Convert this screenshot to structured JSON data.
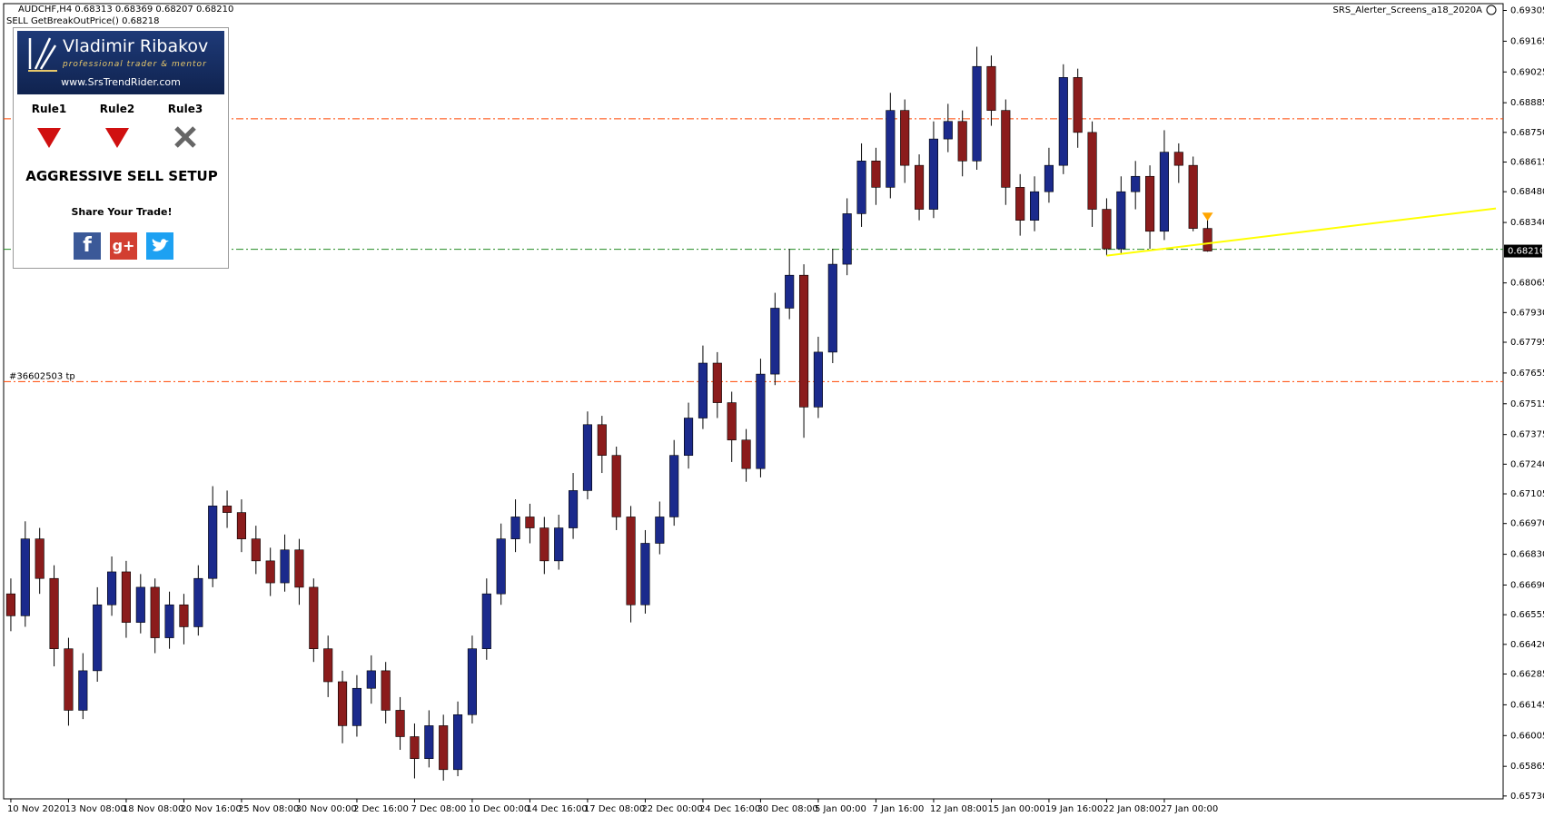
{
  "chart_data": {
    "type": "candlestick",
    "header": "AUDCHF,H4  0.68313 0.68369 0.68207 0.68210",
    "subheader": "SELL GetBreakOutPrice() 0.68218",
    "indicator_name": "SRS_Alerter_Screens_a18_2020A",
    "categories": [
      "10 Nov 2020",
      null,
      null,
      null,
      "13 Nov 08:00",
      null,
      null,
      null,
      "18 Nov 08:00",
      null,
      null,
      null,
      "20 Nov 16:00",
      null,
      null,
      null,
      "25 Nov 08:00",
      null,
      null,
      null,
      "30 Nov 00:00",
      null,
      null,
      null,
      "2 Dec 16:00",
      null,
      null,
      null,
      "7 Dec 08:00",
      null,
      null,
      null,
      "10 Dec 00:00",
      null,
      null,
      null,
      "14 Dec 16:00",
      null,
      null,
      null,
      "17 Dec 08:00",
      null,
      null,
      null,
      "22 Dec 00:00",
      null,
      null,
      null,
      "24 Dec 16:00",
      null,
      null,
      null,
      "30 Dec 08:00",
      null,
      null,
      null,
      "5 Jan 00:00",
      null,
      null,
      null,
      "7 Jan 16:00",
      null,
      null,
      null,
      "12 Jan 08:00",
      null,
      null,
      null,
      "15 Jan 00:00",
      null,
      null,
      null,
      "19 Jan 16:00",
      null,
      null,
      null,
      "22 Jan 08:00",
      null,
      null,
      null,
      "27 Jan 00:00",
      null,
      null,
      null
    ],
    "open": [
      0.6665,
      0.6655,
      0.669,
      0.6672,
      0.664,
      0.6612,
      0.663,
      0.666,
      0.6675,
      0.6652,
      0.6668,
      0.6645,
      0.666,
      0.665,
      0.6672,
      0.6705,
      0.6702,
      0.669,
      0.668,
      0.667,
      0.6685,
      0.6668,
      0.664,
      0.6625,
      0.6605,
      0.6622,
      0.663,
      0.6612,
      0.66,
      0.659,
      0.6605,
      0.6585,
      0.661,
      0.664,
      0.6665,
      0.669,
      0.67,
      0.6695,
      0.668,
      0.6695,
      0.6712,
      0.6742,
      0.6728,
      0.67,
      0.666,
      0.6688,
      0.67,
      0.6728,
      0.6745,
      0.677,
      0.6752,
      0.6735,
      0.6722,
      0.6765,
      0.6795,
      0.681,
      0.675,
      0.6775,
      0.6815,
      0.6838,
      0.6862,
      0.685,
      0.6885,
      0.686,
      0.684,
      0.6872,
      0.688,
      0.6862,
      0.6905,
      0.6885,
      0.685,
      0.6835,
      0.6848,
      0.686,
      0.69,
      0.6875,
      0.684,
      0.6822,
      0.6848,
      0.6855,
      0.683,
      0.6866,
      0.686,
      0.68313
    ],
    "high": [
      0.6672,
      0.6698,
      0.6695,
      0.6678,
      0.6645,
      0.6638,
      0.6668,
      0.6682,
      0.668,
      0.6674,
      0.6672,
      0.6666,
      0.6665,
      0.6678,
      0.6714,
      0.6712,
      0.6708,
      0.6696,
      0.6686,
      0.6692,
      0.669,
      0.6672,
      0.6646,
      0.663,
      0.6628,
      0.6637,
      0.6634,
      0.6618,
      0.6606,
      0.6612,
      0.661,
      0.6616,
      0.6646,
      0.6672,
      0.6697,
      0.6708,
      0.6706,
      0.67,
      0.6701,
      0.672,
      0.6748,
      0.6746,
      0.6732,
      0.6705,
      0.6694,
      0.6707,
      0.6735,
      0.6752,
      0.6778,
      0.6775,
      0.6757,
      0.674,
      0.6772,
      0.6802,
      0.6822,
      0.6815,
      0.6782,
      0.6822,
      0.6845,
      0.687,
      0.6868,
      0.6893,
      0.689,
      0.6865,
      0.688,
      0.6888,
      0.6885,
      0.6914,
      0.691,
      0.689,
      0.6856,
      0.6855,
      0.6868,
      0.6906,
      0.6904,
      0.688,
      0.6845,
      0.6855,
      0.6862,
      0.686,
      0.6876,
      0.687,
      0.6864,
      0.68369
    ],
    "low": [
      0.6648,
      0.665,
      0.6665,
      0.6632,
      0.6605,
      0.6608,
      0.6625,
      0.6655,
      0.6645,
      0.6647,
      0.6638,
      0.664,
      0.6642,
      0.6646,
      0.6668,
      0.6695,
      0.6684,
      0.6674,
      0.6664,
      0.6666,
      0.666,
      0.6634,
      0.6618,
      0.6597,
      0.66,
      0.6615,
      0.6606,
      0.6594,
      0.6581,
      0.6586,
      0.658,
      0.6582,
      0.6606,
      0.6635,
      0.666,
      0.6684,
      0.6688,
      0.6674,
      0.6676,
      0.669,
      0.6708,
      0.672,
      0.6694,
      0.6652,
      0.6656,
      0.6683,
      0.6696,
      0.6722,
      0.674,
      0.6745,
      0.6725,
      0.6716,
      0.6718,
      0.676,
      0.679,
      0.6736,
      0.6745,
      0.677,
      0.681,
      0.6832,
      0.6842,
      0.6845,
      0.6852,
      0.6835,
      0.6836,
      0.6866,
      0.6855,
      0.6858,
      0.6878,
      0.6842,
      0.6828,
      0.683,
      0.6843,
      0.6856,
      0.6868,
      0.6832,
      0.6819,
      0.682,
      0.684,
      0.6822,
      0.6826,
      0.6852,
      0.683,
      0.68207
    ],
    "close": [
      0.6655,
      0.669,
      0.6672,
      0.664,
      0.6612,
      0.663,
      0.666,
      0.6675,
      0.6652,
      0.6668,
      0.6645,
      0.666,
      0.665,
      0.6672,
      0.6705,
      0.6702,
      0.669,
      0.668,
      0.667,
      0.6685,
      0.6668,
      0.664,
      0.6625,
      0.6605,
      0.6622,
      0.663,
      0.6612,
      0.66,
      0.659,
      0.6605,
      0.6585,
      0.661,
      0.664,
      0.6665,
      0.669,
      0.67,
      0.6695,
      0.668,
      0.6695,
      0.6712,
      0.6742,
      0.6728,
      0.67,
      0.666,
      0.6688,
      0.67,
      0.6728,
      0.6745,
      0.677,
      0.6752,
      0.6735,
      0.6722,
      0.6765,
      0.6795,
      0.681,
      0.675,
      0.6775,
      0.6815,
      0.6838,
      0.6862,
      0.685,
      0.6885,
      0.686,
      0.684,
      0.6872,
      0.688,
      0.6862,
      0.6905,
      0.6885,
      0.685,
      0.6835,
      0.6848,
      0.686,
      0.69,
      0.6875,
      0.684,
      0.6822,
      0.6848,
      0.6855,
      0.683,
      0.6866,
      0.686,
      0.68313,
      0.6821
    ],
    "up_color": "#1b2a8c",
    "down_color": "#8b1c1c",
    "ylim": [
      0.65717,
      0.69336
    ],
    "yticks": [
      0.69305,
      0.69165,
      0.69025,
      0.68885,
      {
        "value": 0.6875,
        "label": "0.68750"
      },
      0.68615,
      {
        "value": 0.6848,
        "label": "0.68480"
      },
      {
        "value": 0.6834,
        "label": "0.68340"
      },
      0.68065,
      {
        "value": 0.6793,
        "label": "0.67930"
      },
      0.67795,
      0.67655,
      0.67515,
      0.67375,
      {
        "value": 0.6724,
        "label": "0.67240"
      },
      0.67105,
      {
        "value": 0.6697,
        "label": "0.66970"
      },
      {
        "value": 0.6683,
        "label": "0.66830"
      },
      {
        "value": 0.6669,
        "label": "0.66690"
      },
      0.66555,
      {
        "value": 0.6642,
        "label": "0.66420"
      },
      0.66285,
      0.66145,
      0.66005,
      0.65865,
      {
        "value": 0.6573,
        "label": "0.65730"
      }
    ],
    "current_price": {
      "value": 0.6821,
      "label": "0.68210"
    },
    "levels": [
      {
        "value": 0.68812,
        "color": "#ff4500"
      },
      {
        "value": 0.68218,
        "color": "#228b22"
      },
      {
        "value": 0.67616,
        "color": "#ff4500",
        "label": "#36602503 tp"
      }
    ],
    "trendline": {
      "color": "#ffff00",
      "x": [
        76,
        103
      ],
      "values": [
        0.68189,
        0.68404
      ]
    },
    "signal": {
      "index": 83,
      "value": 0.6836,
      "color": "#ffa500"
    }
  },
  "panel": {
    "name": "Vladimir Ribakov",
    "tagline": "professional trader & mentor",
    "url": "www.SrsTrendRider.com",
    "rules": [
      "Rule1",
      "Rule2",
      "Rule3"
    ],
    "setup": "AGGRESSIVE SELL SETUP",
    "share": "Share Your Trade!",
    "icons": [
      "f",
      "g+"
    ]
  }
}
